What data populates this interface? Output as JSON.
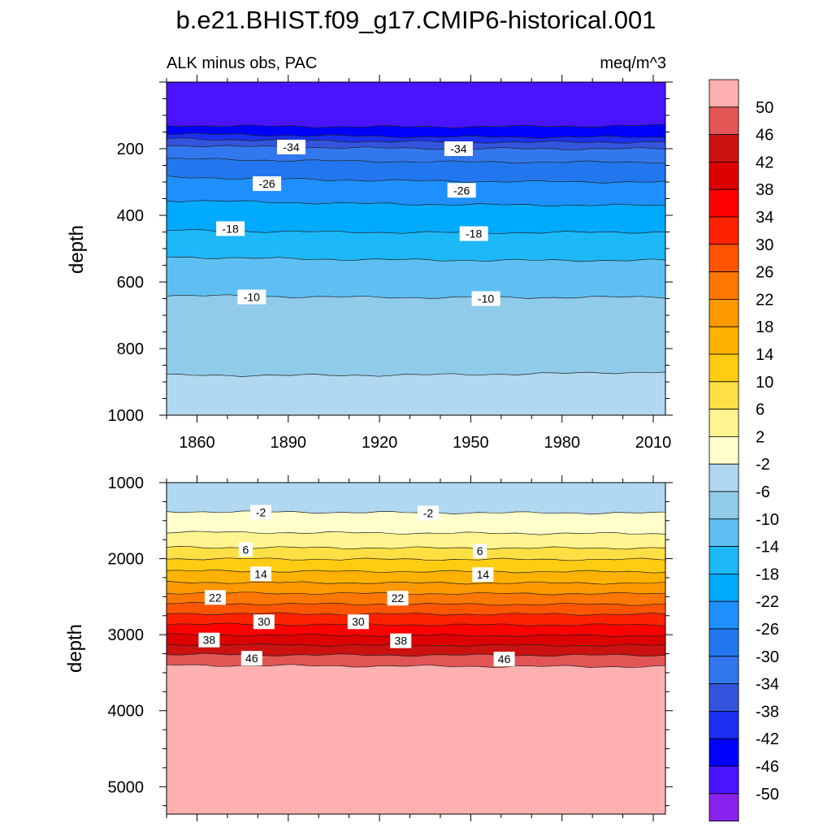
{
  "figure": {
    "title": "b.e21.BHIST.f09_g17.CMIP6-historical.001"
  },
  "chart_data": [
    {
      "type": "contour",
      "subtitle_left": "ALK minus obs, PAC",
      "subtitle_right": "meq/m^3",
      "ylabel": "depth",
      "xlim": [
        1850,
        2014
      ],
      "ylim": [
        1000,
        0
      ],
      "x_ticks": [
        "1860",
        "1890",
        "1920",
        "1950",
        "1980",
        "2010"
      ],
      "y_ticks": [
        "200",
        "400",
        "600",
        "800",
        "1000"
      ],
      "contour_lines": [
        {
          "level": -46,
          "depth_start": 130,
          "depth_end": 130
        },
        {
          "level": -42,
          "depth_start": 155,
          "depth_end": 165
        },
        {
          "level": -38,
          "depth_start": 170,
          "depth_end": 180
        },
        {
          "level": -34,
          "depth_start": 190,
          "depth_end": 200
        },
        {
          "level": -30,
          "depth_start": 230,
          "depth_end": 240
        },
        {
          "level": -26,
          "depth_start": 285,
          "depth_end": 300
        },
        {
          "level": -22,
          "depth_start": 355,
          "depth_end": 370
        },
        {
          "level": -18,
          "depth_start": 445,
          "depth_end": 450
        },
        {
          "level": -14,
          "depth_start": 525,
          "depth_end": 535
        },
        {
          "level": -10,
          "depth_start": 640,
          "depth_end": 645
        },
        {
          "level": -6,
          "depth_start": 880,
          "depth_end": 870
        }
      ],
      "contour_labels": [
        {
          "text": "-34",
          "year": 1891,
          "depth": 195
        },
        {
          "text": "-34",
          "year": 1946,
          "depth": 200
        },
        {
          "text": "-26",
          "year": 1883,
          "depth": 305
        },
        {
          "text": "-26",
          "year": 1947,
          "depth": 325
        },
        {
          "text": "-18",
          "year": 1871,
          "depth": 440
        },
        {
          "text": "-18",
          "year": 1951,
          "depth": 455
        },
        {
          "text": "-10",
          "year": 1878,
          "depth": 645
        },
        {
          "text": "-10",
          "year": 1955,
          "depth": 650
        }
      ]
    },
    {
      "type": "contour",
      "ylabel": "depth",
      "xlim": [
        1850,
        2014
      ],
      "ylim": [
        5360,
        1000
      ],
      "y_ticks": [
        "1000",
        "2000",
        "3000",
        "4000",
        "5000"
      ],
      "contour_lines": [
        {
          "level": -2,
          "depth_start": 1380,
          "depth_end": 1400
        },
        {
          "level": 2,
          "depth_start": 1650,
          "depth_end": 1670
        },
        {
          "level": 6,
          "depth_start": 1850,
          "depth_end": 1860
        },
        {
          "level": 10,
          "depth_start": 2000,
          "depth_end": 2010
        },
        {
          "level": 14,
          "depth_start": 2160,
          "depth_end": 2170
        },
        {
          "level": 18,
          "depth_start": 2310,
          "depth_end": 2320
        },
        {
          "level": 22,
          "depth_start": 2450,
          "depth_end": 2460
        },
        {
          "level": 26,
          "depth_start": 2590,
          "depth_end": 2600
        },
        {
          "level": 30,
          "depth_start": 2720,
          "depth_end": 2730
        },
        {
          "level": 34,
          "depth_start": 2860,
          "depth_end": 2870
        },
        {
          "level": 38,
          "depth_start": 3000,
          "depth_end": 3010
        },
        {
          "level": 42,
          "depth_start": 3130,
          "depth_end": 3140
        },
        {
          "level": 46,
          "depth_start": 3260,
          "depth_end": 3270
        },
        {
          "level": 50,
          "depth_start": 3400,
          "depth_end": 3420
        }
      ],
      "contour_labels": [
        {
          "text": "-2",
          "year": 1881,
          "depth": 1390
        },
        {
          "text": "-2",
          "year": 1936,
          "depth": 1400
        },
        {
          "text": "6",
          "year": 1876,
          "depth": 1880
        },
        {
          "text": "6",
          "year": 1953,
          "depth": 1900
        },
        {
          "text": "14",
          "year": 1881,
          "depth": 2200
        },
        {
          "text": "14",
          "year": 1954,
          "depth": 2210
        },
        {
          "text": "22",
          "year": 1866,
          "depth": 2510
        },
        {
          "text": "22",
          "year": 1926,
          "depth": 2520
        },
        {
          "text": "30",
          "year": 1882,
          "depth": 2830
        },
        {
          "text": "30",
          "year": 1913,
          "depth": 2830
        },
        {
          "text": "38",
          "year": 1864,
          "depth": 3070
        },
        {
          "text": "38",
          "year": 1927,
          "depth": 3080
        },
        {
          "text": "46",
          "year": 1878,
          "depth": 3310
        },
        {
          "text": "46",
          "year": 1961,
          "depth": 3320
        }
      ]
    }
  ],
  "colorbar": {
    "labels": [
      "50",
      "46",
      "42",
      "38",
      "34",
      "30",
      "26",
      "22",
      "18",
      "14",
      "10",
      "6",
      "2",
      "-2",
      "-6",
      "-10",
      "-14",
      "-18",
      "-22",
      "-26",
      "-30",
      "-34",
      "-38",
      "-42",
      "-46",
      "-50"
    ],
    "colors": [
      "#ffb0b0",
      "#e35555",
      "#cc1111",
      "#dd0000",
      "#ff0000",
      "#ff2200",
      "#ff5500",
      "#ff7700",
      "#ff9900",
      "#ffb300",
      "#ffcc11",
      "#ffe044",
      "#fff490",
      "#ffffcc",
      "#b0d8f0",
      "#90cbea",
      "#5ec0f2",
      "#1cb8f8",
      "#00aaff",
      "#1e90ff",
      "#2277ee",
      "#3377ee",
      "#3355dd",
      "#1a2ff0",
      "#0000ff",
      "#4a14ff",
      "#8a22ee"
    ]
  }
}
